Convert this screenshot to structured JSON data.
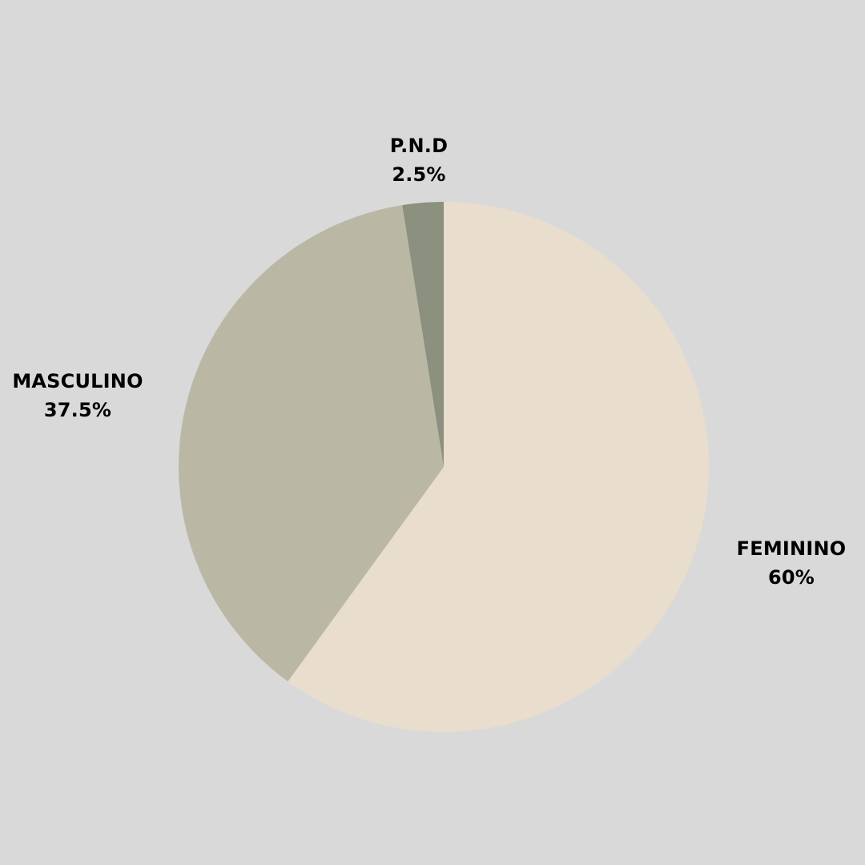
{
  "chart_data": {
    "type": "pie",
    "title": "",
    "start_angle_deg": 0,
    "direction": "clockwise",
    "slices": [
      {
        "name": "FEMININO",
        "value": 60,
        "value_label": "60%",
        "color": "#e9ddcd"
      },
      {
        "name": "MASCULINO",
        "value": 37.5,
        "value_label": "37.5%",
        "color": "#bab8a5"
      },
      {
        "name": "P.N.D",
        "value": 2.5,
        "value_label": "2.5%",
        "color": "#8b917e"
      }
    ],
    "legend": "none",
    "background": "#d9d9d9"
  }
}
